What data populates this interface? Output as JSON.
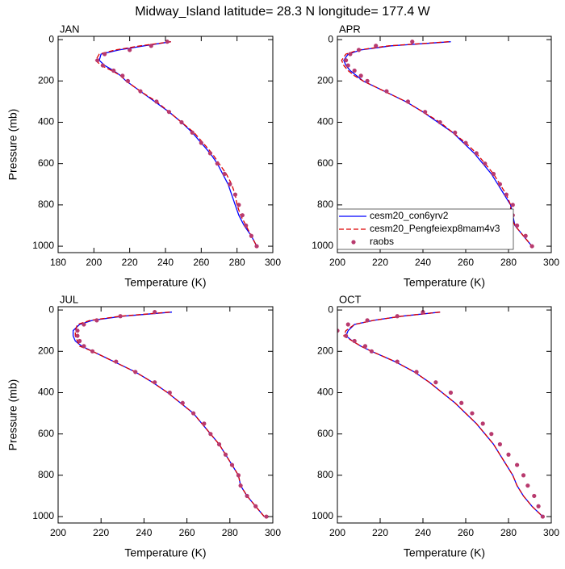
{
  "title": "Midway_Island  latitude= 28.3 N longitude= 177.4 W",
  "chart_data": [
    {
      "type": "line",
      "panel_label": "JAN",
      "xlabel": "Temperature (K)",
      "ylabel": "Pressure (mb)",
      "xlim": [
        180,
        300
      ],
      "xticks": [
        180,
        200,
        220,
        240,
        260,
        280,
        300
      ],
      "ylim": [
        1031,
        -16
      ],
      "yticks": [
        0,
        200,
        400,
        600,
        800,
        1000
      ],
      "y": [
        10,
        30,
        50,
        70,
        100,
        125,
        150,
        175,
        200,
        250,
        300,
        350,
        400,
        450,
        500,
        550,
        600,
        650,
        700,
        750,
        800,
        850,
        900,
        950,
        1000
      ],
      "series": [
        {
          "style": "line",
          "color": "#0000ff",
          "values": [
            243,
            228,
            214,
            204,
            203,
            206,
            211,
            215,
            218,
            226,
            234,
            242,
            249,
            255,
            260,
            265,
            269,
            272,
            275,
            277,
            279,
            281,
            284,
            288,
            291
          ]
        },
        {
          "style": "dashed",
          "color": "#dd0000",
          "values": [
            243,
            226,
            212,
            203,
            201,
            204,
            210,
            215,
            218,
            226,
            235,
            242,
            249,
            256,
            261,
            266,
            270,
            274,
            277,
            279,
            280,
            282,
            285,
            288,
            291
          ]
        },
        {
          "style": "markers",
          "color": "#b83a6e",
          "values": [
            241,
            232,
            220,
            206,
            202,
            205,
            211,
            216,
            219,
            226,
            235,
            242,
            249,
            255,
            260,
            265,
            269,
            273,
            276,
            279,
            281,
            283,
            285,
            288,
            291
          ]
        }
      ]
    },
    {
      "type": "line",
      "panel_label": "APR",
      "xlabel": "Temperature (K)",
      "legend": "lower left",
      "xlim": [
        200,
        300
      ],
      "xticks": [
        200,
        220,
        240,
        260,
        280,
        300
      ],
      "ylim": [
        1031,
        -16
      ],
      "yticks": [
        0,
        200,
        400,
        600,
        800,
        1000
      ],
      "y": [
        10,
        30,
        50,
        70,
        100,
        125,
        150,
        175,
        200,
        250,
        300,
        350,
        400,
        450,
        500,
        550,
        600,
        650,
        700,
        750,
        800,
        850,
        900,
        950,
        1000
      ],
      "series": [
        {
          "name": "cesm20_con6yrv2",
          "style": "line",
          "color": "#0000ff",
          "values": [
            253,
            225,
            211,
            205,
            203,
            204,
            206,
            209,
            212,
            222,
            232,
            240,
            247,
            254,
            259,
            264,
            268,
            272,
            275,
            278,
            281,
            282,
            283,
            287,
            291
          ]
        },
        {
          "name": "cesm20_Pengfeiexp8mam4v3",
          "style": "dashed",
          "color": "#dd0000",
          "values": [
            252,
            224,
            210,
            204,
            202,
            203,
            205,
            208,
            212,
            222,
            232,
            240,
            248,
            254,
            260,
            265,
            269,
            273,
            276,
            279,
            281,
            281,
            283,
            287,
            291
          ]
        },
        {
          "name": "raobs",
          "style": "markers",
          "color": "#b83a6e",
          "values": [
            235,
            218,
            210,
            206,
            204,
            205,
            208,
            211,
            214,
            223,
            233,
            241,
            248,
            255,
            260,
            265,
            269,
            273,
            276,
            279,
            282,
            282,
            284,
            288,
            291
          ]
        }
      ]
    },
    {
      "type": "line",
      "panel_label": "JUL",
      "xlabel": "Temperature (K)",
      "ylabel": "Pressure (mb)",
      "xlim": [
        200,
        300
      ],
      "xticks": [
        200,
        220,
        240,
        260,
        280,
        300
      ],
      "ylim": [
        1031,
        -16
      ],
      "yticks": [
        0,
        200,
        400,
        600,
        800,
        1000
      ],
      "y": [
        10,
        30,
        50,
        70,
        100,
        125,
        150,
        175,
        200,
        250,
        300,
        350,
        400,
        450,
        500,
        550,
        600,
        650,
        700,
        750,
        800,
        850,
        900,
        950,
        1000
      ],
      "series": [
        {
          "style": "line",
          "color": "#0000ff",
          "values": [
            253,
            230,
            216,
            210,
            207,
            207,
            208,
            211,
            216,
            226,
            236,
            244,
            251,
            257,
            263,
            267,
            271,
            275,
            278,
            281,
            284,
            285,
            288,
            292,
            296
          ]
        },
        {
          "style": "dashed",
          "color": "#dd0000",
          "values": [
            252,
            229,
            215,
            209,
            208,
            208,
            209,
            210,
            216,
            226,
            236,
            244,
            251,
            257,
            263,
            267,
            271,
            275,
            278,
            281,
            284,
            285,
            288,
            292,
            296
          ]
        },
        {
          "style": "markers",
          "color": "#b83a6e",
          "values": [
            245,
            229,
            218,
            212,
            209,
            209,
            210,
            212,
            216,
            227,
            236,
            245,
            252,
            258,
            263,
            268,
            271,
            275,
            278,
            281,
            284,
            285,
            288,
            292,
            297
          ]
        }
      ]
    },
    {
      "type": "line",
      "panel_label": "OCT",
      "xlabel": "Temperature (K)",
      "xlim": [
        200,
        300
      ],
      "xticks": [
        200,
        220,
        240,
        260,
        280,
        300
      ],
      "ylim": [
        1031,
        -16
      ],
      "yticks": [
        0,
        200,
        400,
        600,
        800,
        1000
      ],
      "y": [
        10,
        30,
        50,
        70,
        100,
        125,
        150,
        175,
        200,
        250,
        300,
        350,
        400,
        450,
        500,
        550,
        600,
        650,
        700,
        750,
        800,
        850,
        900,
        950,
        1000
      ],
      "series": [
        {
          "style": "line",
          "color": "#0000ff",
          "values": [
            248,
            230,
            217,
            208,
            205,
            204,
            207,
            211,
            216,
            227,
            236,
            243,
            249,
            255,
            260,
            265,
            269,
            273,
            276,
            279,
            282,
            284,
            287,
            291,
            296
          ]
        },
        {
          "style": "dashed",
          "color": "#dd0000",
          "values": [
            248,
            230,
            217,
            208,
            204,
            203,
            207,
            211,
            216,
            227,
            236,
            243,
            249,
            255,
            260,
            265,
            269,
            273,
            276,
            279,
            282,
            284,
            287,
            291,
            296
          ]
        },
        {
          "style": "markers",
          "color": "#b83a6e",
          "values": [
            240,
            228,
            214,
            205,
            200,
            204,
            208,
            213,
            216,
            228,
            237,
            246,
            253,
            258,
            263,
            268,
            272,
            276,
            280,
            284,
            287,
            289,
            292,
            294,
            296
          ]
        }
      ]
    }
  ]
}
